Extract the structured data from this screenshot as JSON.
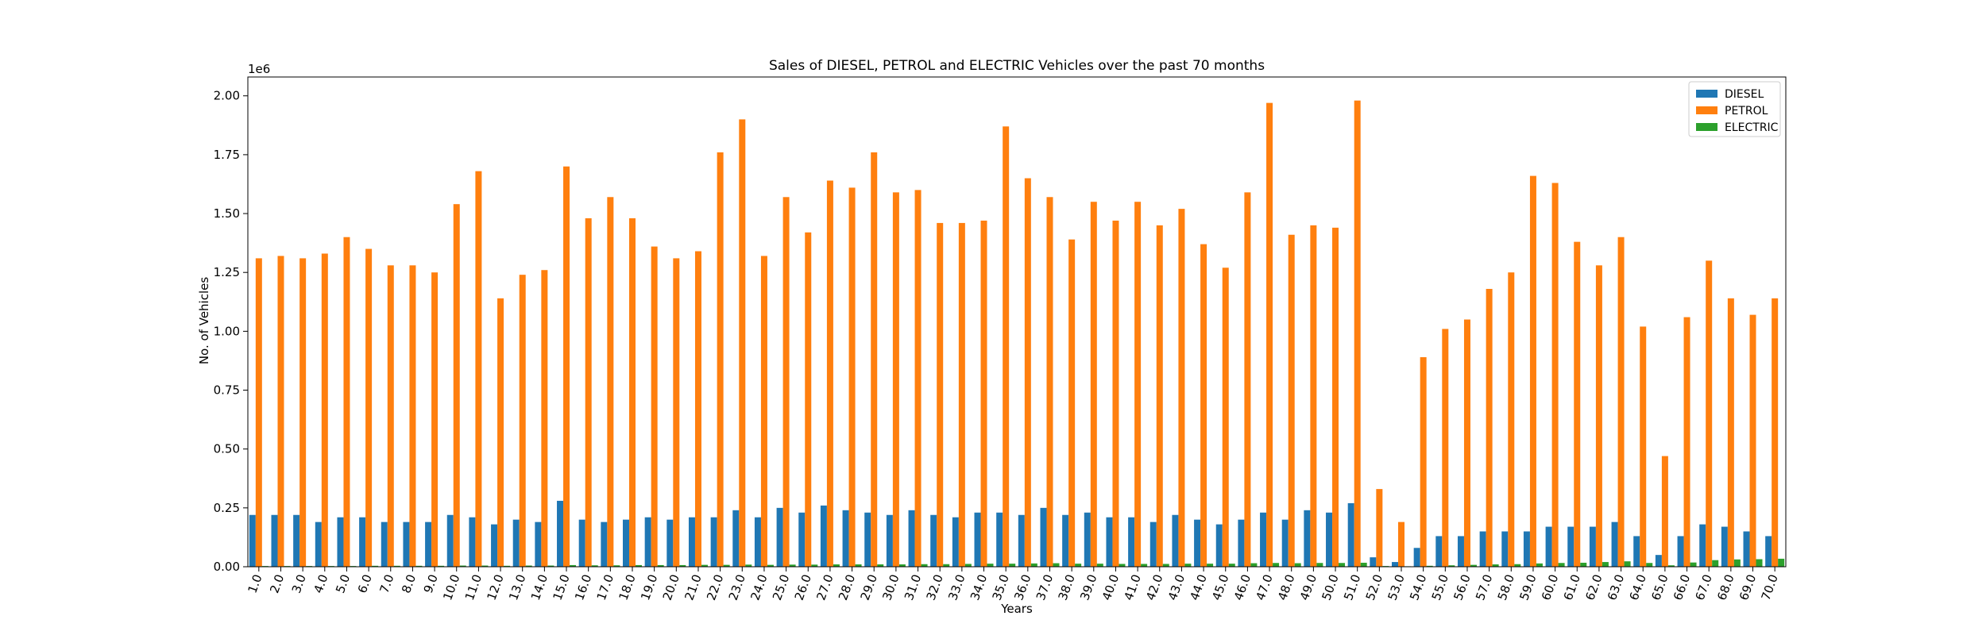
{
  "chart_data": {
    "type": "bar",
    "title": "Sales of DIESEL, PETROL and ELECTRIC Vehicles over the past 70 months",
    "xlabel": "Years",
    "ylabel": "No. of Vehicles",
    "y_offset_label": "1e6",
    "ylim": [
      0,
      2.08
    ],
    "yticks": [
      0.0,
      0.25,
      0.5,
      0.75,
      1.0,
      1.25,
      1.5,
      1.75,
      2.0
    ],
    "ytick_labels": [
      "0.00",
      "0.25",
      "0.50",
      "0.75",
      "1.00",
      "1.25",
      "1.50",
      "1.75",
      "2.00"
    ],
    "legend_position": "top-right",
    "grid": false,
    "categories": [
      "1.0",
      "2.0",
      "3.0",
      "4.0",
      "5.0",
      "6.0",
      "7.0",
      "8.0",
      "9.0",
      "10.0",
      "11.0",
      "12.0",
      "13.0",
      "14.0",
      "15.0",
      "16.0",
      "17.0",
      "18.0",
      "19.0",
      "20.0",
      "21.0",
      "22.0",
      "23.0",
      "24.0",
      "25.0",
      "26.0",
      "27.0",
      "28.0",
      "29.0",
      "30.0",
      "31.0",
      "32.0",
      "33.0",
      "34.0",
      "35.0",
      "36.0",
      "37.0",
      "38.0",
      "39.0",
      "40.0",
      "41.0",
      "42.0",
      "43.0",
      "44.0",
      "45.0",
      "46.0",
      "47.0",
      "48.0",
      "49.0",
      "50.0",
      "51.0",
      "52.0",
      "53.0",
      "54.0",
      "55.0",
      "56.0",
      "57.0",
      "58.0",
      "59.0",
      "60.0",
      "61.0",
      "62.0",
      "63.0",
      "64.0",
      "65.0",
      "66.0",
      "67.0",
      "68.0",
      "69.0",
      "70.0"
    ],
    "series": [
      {
        "name": "DIESEL",
        "color": "#1f77b4",
        "values": [
          0.22,
          0.22,
          0.22,
          0.19,
          0.21,
          0.21,
          0.19,
          0.19,
          0.19,
          0.22,
          0.21,
          0.18,
          0.2,
          0.19,
          0.28,
          0.2,
          0.19,
          0.2,
          0.21,
          0.2,
          0.21,
          0.21,
          0.24,
          0.21,
          0.25,
          0.23,
          0.26,
          0.24,
          0.23,
          0.22,
          0.24,
          0.22,
          0.21,
          0.23,
          0.23,
          0.22,
          0.25,
          0.22,
          0.23,
          0.21,
          0.21,
          0.19,
          0.22,
          0.2,
          0.18,
          0.2,
          0.23,
          0.2,
          0.24,
          0.23,
          0.27,
          0.04,
          0.02,
          0.08,
          0.13,
          0.13,
          0.15,
          0.15,
          0.15,
          0.17,
          0.17,
          0.17,
          0.19,
          0.13,
          0.05,
          0.13,
          0.18,
          0.17,
          0.15,
          0.13
        ]
      },
      {
        "name": "PETROL",
        "color": "#ff7f0e",
        "values": [
          1.31,
          1.32,
          1.31,
          1.33,
          1.4,
          1.35,
          1.28,
          1.28,
          1.25,
          1.54,
          1.68,
          1.14,
          1.24,
          1.26,
          1.7,
          1.48,
          1.57,
          1.48,
          1.36,
          1.31,
          1.34,
          1.76,
          1.9,
          1.32,
          1.57,
          1.42,
          1.64,
          1.61,
          1.76,
          1.59,
          1.6,
          1.46,
          1.46,
          1.47,
          1.87,
          1.65,
          1.57,
          1.39,
          1.55,
          1.47,
          1.55,
          1.45,
          1.52,
          1.37,
          1.27,
          1.59,
          1.97,
          1.41,
          1.45,
          1.44,
          1.98,
          0.33,
          0.19,
          0.89,
          1.01,
          1.05,
          1.18,
          1.25,
          1.66,
          1.63,
          1.38,
          1.28,
          1.4,
          1.02,
          0.47,
          1.06,
          1.3,
          1.14,
          1.07,
          1.14
        ]
      },
      {
        "name": "ELECTRIC",
        "color": "#2ca02c",
        "values": [
          0.003,
          0.003,
          0.003,
          0.003,
          0.003,
          0.004,
          0.004,
          0.004,
          0.004,
          0.005,
          0.005,
          0.004,
          0.005,
          0.005,
          0.007,
          0.006,
          0.006,
          0.007,
          0.007,
          0.007,
          0.008,
          0.008,
          0.009,
          0.008,
          0.009,
          0.009,
          0.01,
          0.01,
          0.01,
          0.01,
          0.011,
          0.011,
          0.012,
          0.013,
          0.013,
          0.014,
          0.015,
          0.013,
          0.013,
          0.012,
          0.012,
          0.012,
          0.013,
          0.013,
          0.013,
          0.015,
          0.016,
          0.015,
          0.016,
          0.016,
          0.017,
          0.003,
          0.002,
          0.004,
          0.006,
          0.008,
          0.01,
          0.011,
          0.014,
          0.016,
          0.017,
          0.02,
          0.023,
          0.016,
          0.006,
          0.018,
          0.028,
          0.031,
          0.032,
          0.034
        ]
      }
    ]
  }
}
